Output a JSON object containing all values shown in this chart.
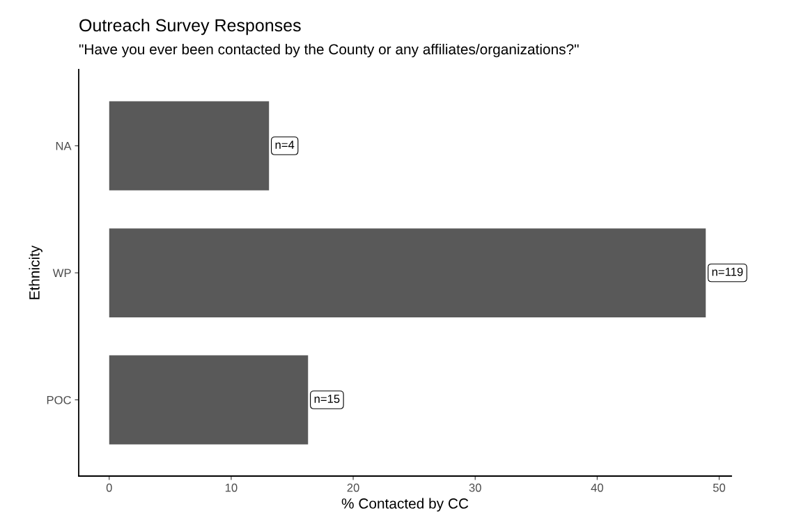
{
  "chart_data": {
    "type": "bar",
    "orientation": "horizontal",
    "title": "Outreach Survey Responses",
    "subtitle": "\"Have you ever been contacted by the County or any affiliates/organizations?\"",
    "xlabel": "% Contacted by CC",
    "ylabel": "Ethnicity",
    "categories": [
      "NA",
      "WP",
      "POC"
    ],
    "values": [
      13.1,
      48.9,
      16.3
    ],
    "color": "#595959",
    "xlim": [
      -2.5,
      51
    ],
    "xticks": [
      0,
      10,
      20,
      30,
      40,
      50
    ],
    "grid": false,
    "legend": false,
    "annotations": [
      {
        "text": "n=4",
        "x": 13.1,
        "y": "NA"
      },
      {
        "text": "n=119",
        "x": 48.9,
        "y": "WP"
      },
      {
        "text": "n=15",
        "x": 16.3,
        "y": "POC"
      }
    ]
  }
}
